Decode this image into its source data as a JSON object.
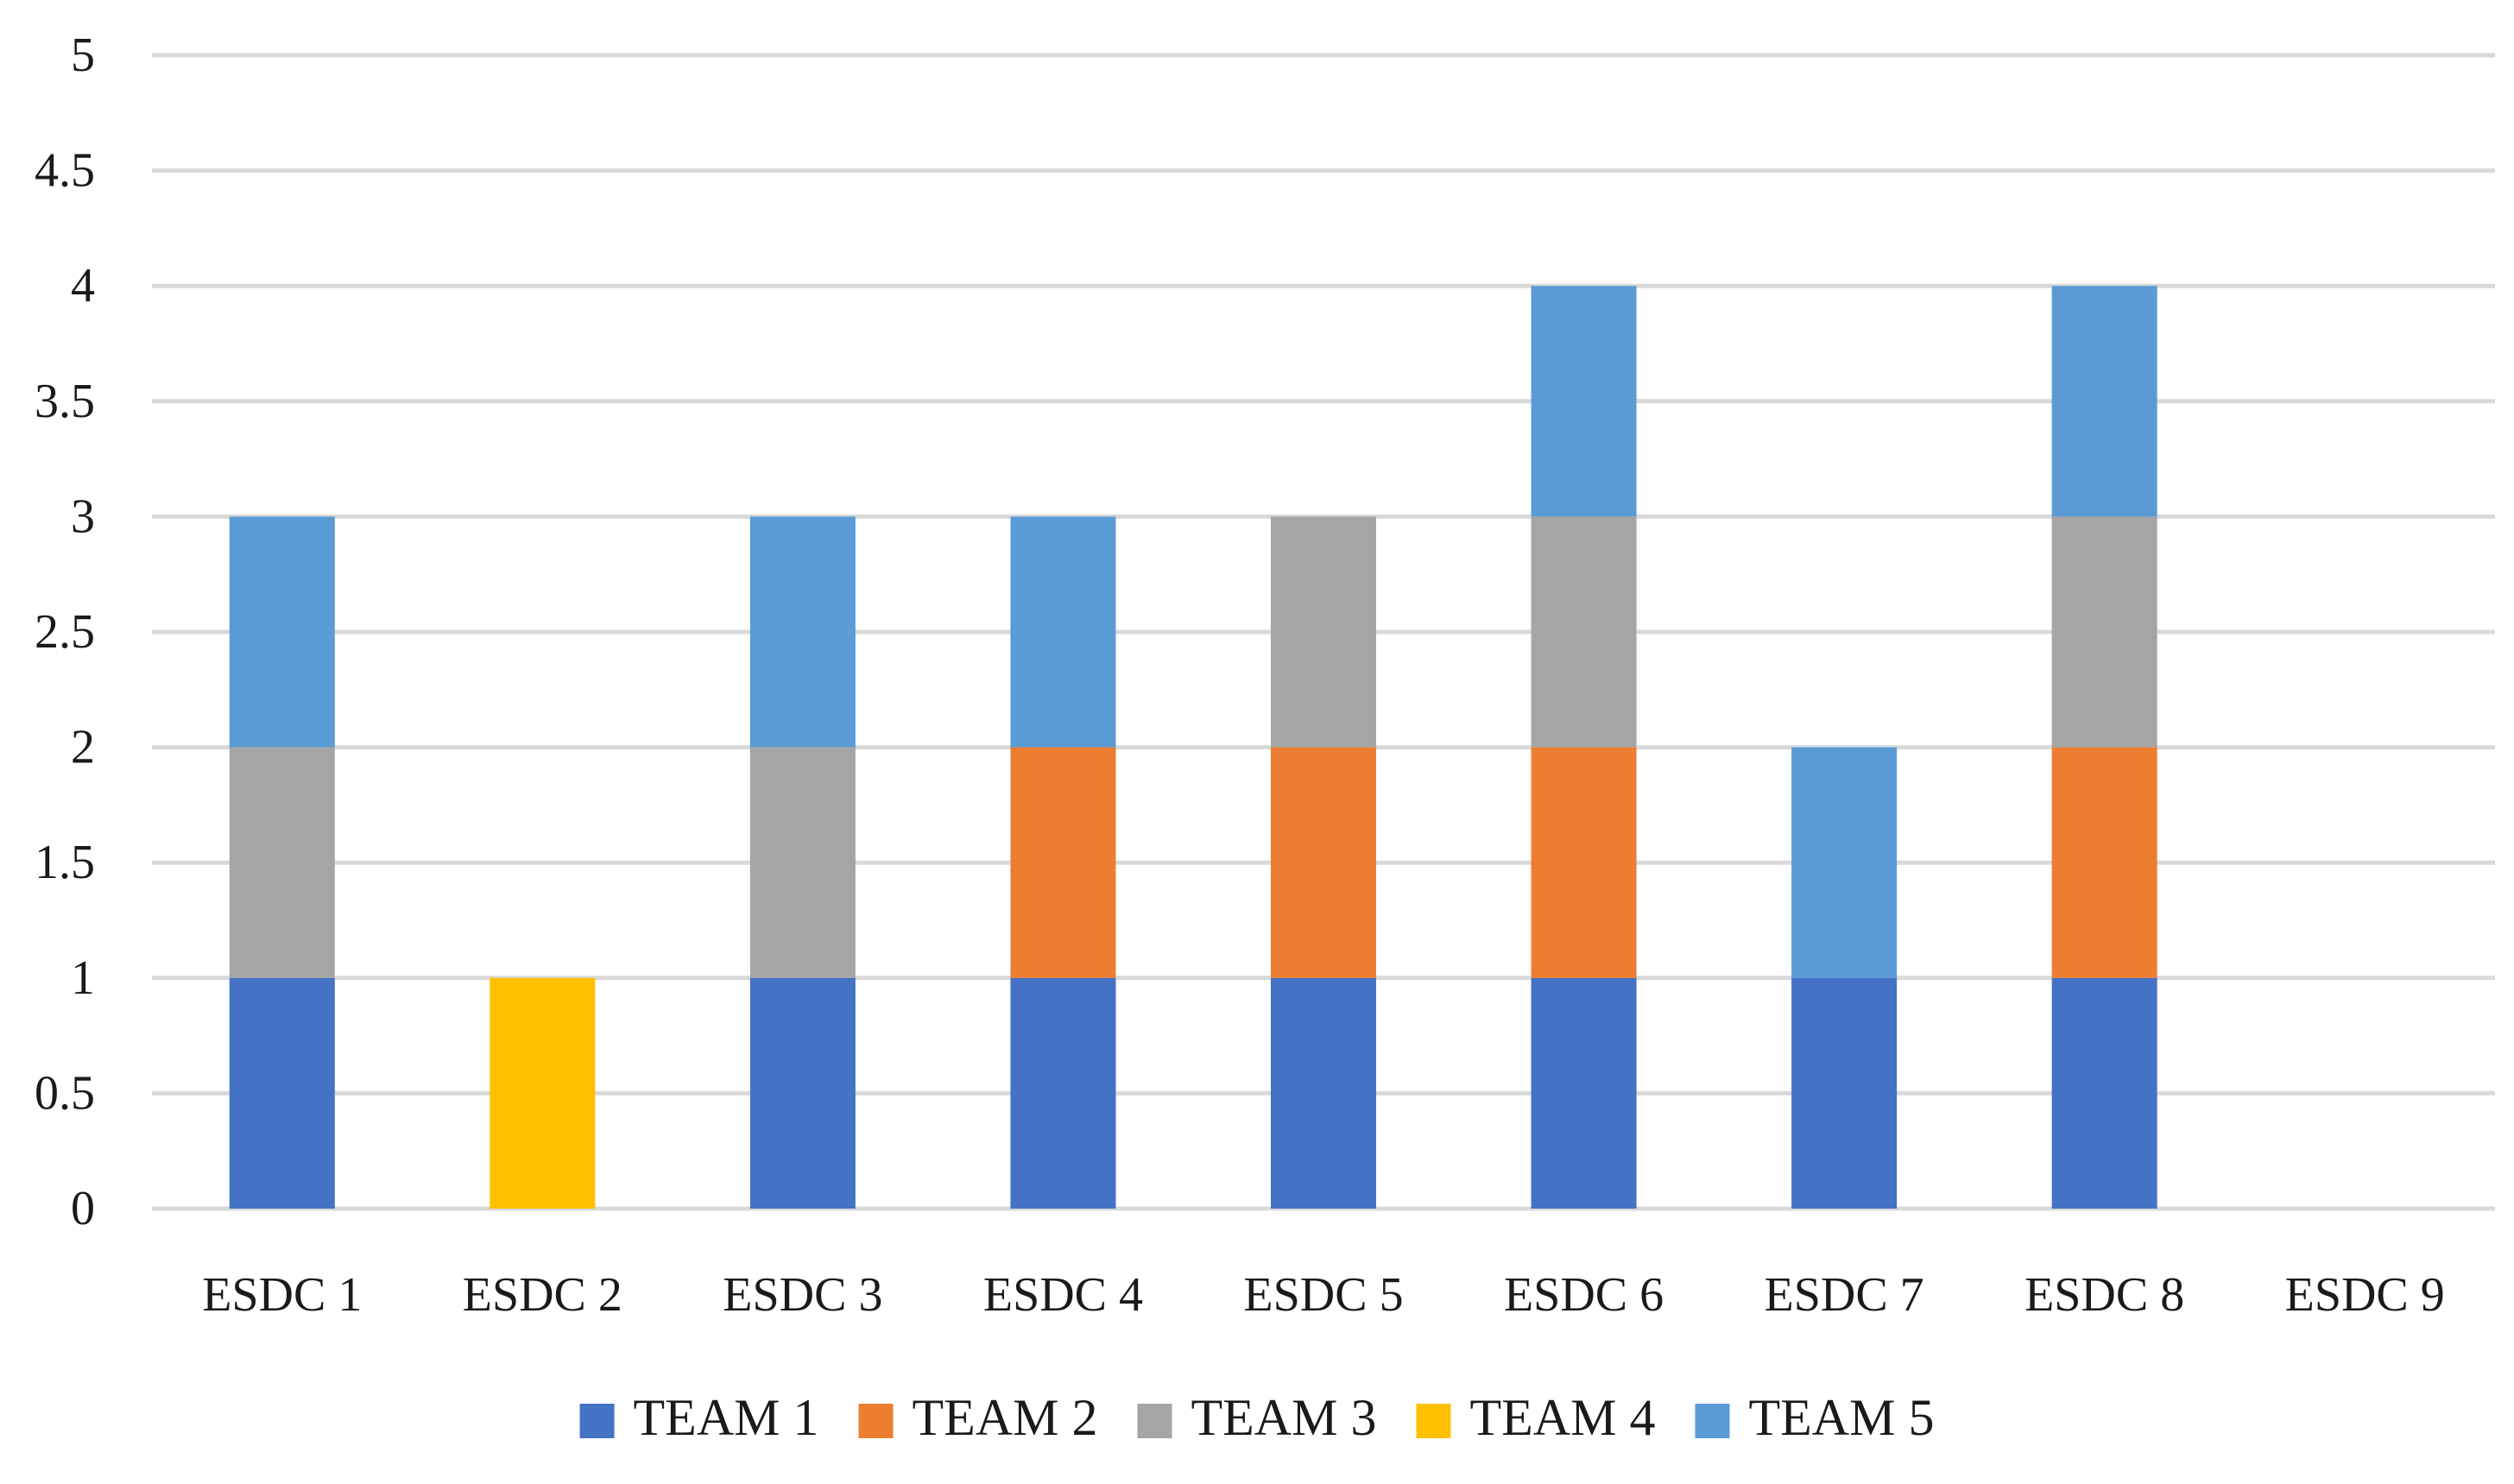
{
  "chart_data": {
    "type": "bar",
    "stacked": true,
    "title": "",
    "xlabel": "",
    "ylabel": "",
    "ylim": [
      0,
      5
    ],
    "y_ticks": [
      0,
      0.5,
      1,
      1.5,
      2,
      2.5,
      3,
      3.5,
      4,
      4.5,
      5
    ],
    "y_tick_labels": [
      "0",
      "0.5",
      "1",
      "1.5",
      "2",
      "2.5",
      "3",
      "3.5",
      "4",
      "4.5",
      "5"
    ],
    "grid": true,
    "legend_position": "bottom",
    "categories": [
      "ESDC 1",
      "ESDC 2",
      "ESDC 3",
      "ESDC 4",
      "ESDC 5",
      "ESDC 6",
      "ESDC 7",
      "ESDC 8",
      "ESDC 9"
    ],
    "series": [
      {
        "name": "TEAM 1",
        "color": "#4472c4",
        "values": [
          1,
          0,
          1,
          1,
          1,
          1,
          1,
          1,
          0
        ]
      },
      {
        "name": "TEAM 2",
        "color": "#ed7d31",
        "values": [
          0,
          0,
          0,
          1,
          1,
          1,
          0,
          1,
          0
        ]
      },
      {
        "name": "TEAM 3",
        "color": "#a5a5a5",
        "values": [
          1,
          0,
          1,
          0,
          1,
          1,
          0,
          1,
          0
        ]
      },
      {
        "name": "TEAM 4",
        "color": "#ffc000",
        "values": [
          0,
          1,
          0,
          0,
          0,
          0,
          0,
          0,
          0
        ]
      },
      {
        "name": "TEAM 5",
        "color": "#5b9bd5",
        "values": [
          1,
          0,
          1,
          1,
          0,
          1,
          1,
          1,
          0
        ]
      }
    ]
  }
}
